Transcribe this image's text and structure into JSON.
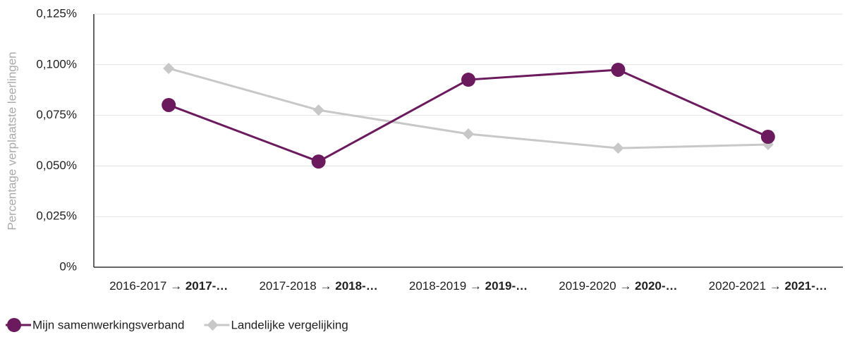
{
  "chart_data": {
    "type": "line",
    "y_label": "Percentage verplaatste leerlingen",
    "categories": [
      [
        "2016-2017",
        "→ 2017-…"
      ],
      [
        "2017-2018",
        "→ 2018-…"
      ],
      [
        "2018-2019",
        "→ 2019-…"
      ],
      [
        "2019-2020",
        "→ 2020-…"
      ],
      [
        "2020-2021",
        "→ 2021-…"
      ]
    ],
    "series": [
      {
        "name": "Mijn samenwerkingsverband",
        "color": "#6b1a5e",
        "marker": "circle",
        "values": [
          0.0801,
          0.0522,
          0.0926,
          0.0975,
          0.0644
        ]
      },
      {
        "name": "Landelijke vergelijking",
        "color": "#c8c8c8",
        "marker": "diamond",
        "values": [
          0.0982,
          0.0776,
          0.0658,
          0.0588,
          0.0606
        ]
      }
    ],
    "ylim": [
      0,
      0.125
    ],
    "yticks": [
      {
        "value": 0,
        "label": "0%"
      },
      {
        "value": 0.025,
        "label": "0,025%"
      },
      {
        "value": 0.05,
        "label": "0,050%"
      },
      {
        "value": 0.075,
        "label": "0,075%"
      },
      {
        "value": 0.1,
        "label": "0,100%"
      },
      {
        "value": 0.125,
        "label": "0,125%"
      }
    ],
    "grid": true,
    "legend": "bottom-left"
  }
}
